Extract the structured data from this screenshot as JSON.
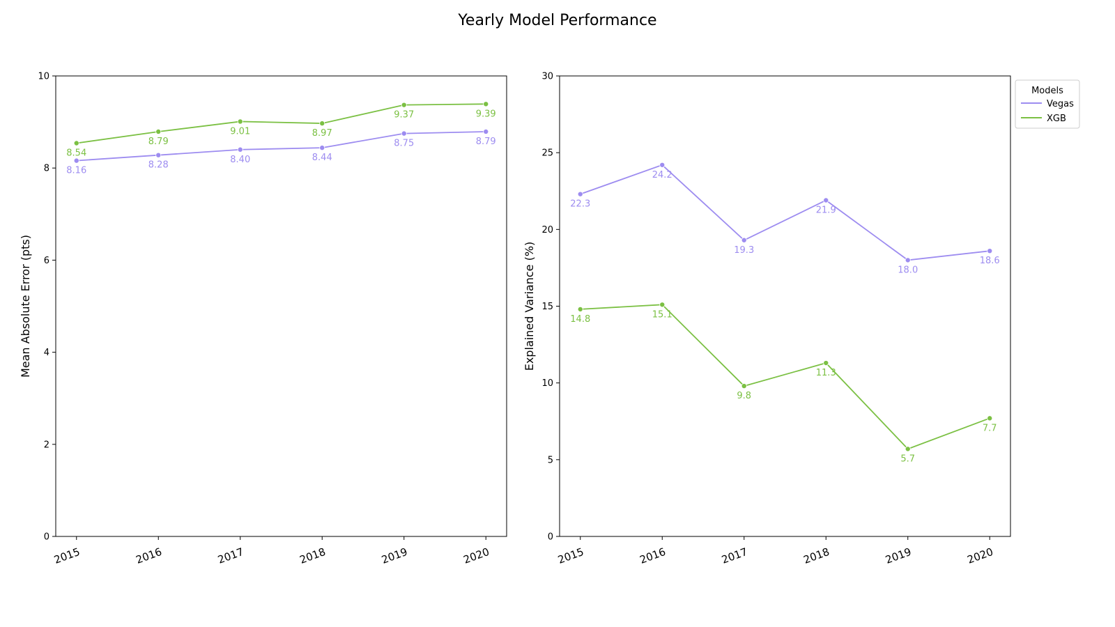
{
  "title": "Yearly Model Performance",
  "colors": {
    "Vegas": "#9d8cf0",
    "XGB": "#7bc043"
  },
  "legend": {
    "title": "Models",
    "placement": "outside-right-top",
    "entries": [
      "Vegas",
      "XGB"
    ]
  },
  "chart_data": [
    {
      "type": "line",
      "ylabel": "Mean Absolute Error (pts)",
      "xlabel": "",
      "x": [
        "2015",
        "2016",
        "2017",
        "2018",
        "2019",
        "2020"
      ],
      "ylim": [
        0,
        10
      ],
      "yticks": [
        0,
        2,
        4,
        6,
        8,
        10
      ],
      "grid": false,
      "series": [
        {
          "name": "Vegas",
          "values": [
            8.16,
            8.28,
            8.4,
            8.44,
            8.75,
            8.79
          ],
          "labels": [
            "8.16",
            "8.28",
            "8.40",
            "8.44",
            "8.75",
            "8.79"
          ]
        },
        {
          "name": "XGB",
          "values": [
            8.54,
            8.79,
            9.01,
            8.97,
            9.37,
            9.39
          ],
          "labels": [
            "8.54",
            "8.79",
            "9.01",
            "8.97",
            "9.37",
            "9.39"
          ]
        }
      ]
    },
    {
      "type": "line",
      "ylabel": "Explained Variance (%)",
      "xlabel": "",
      "x": [
        "2015",
        "2016",
        "2017",
        "2018",
        "2019",
        "2020"
      ],
      "ylim": [
        0,
        30
      ],
      "yticks": [
        0,
        5,
        10,
        15,
        20,
        25,
        30
      ],
      "grid": false,
      "series": [
        {
          "name": "Vegas",
          "values": [
            22.3,
            24.2,
            19.3,
            21.9,
            18.0,
            18.6
          ],
          "labels": [
            "22.3",
            "24.2",
            "19.3",
            "21.9",
            "18.0",
            "18.6"
          ]
        },
        {
          "name": "XGB",
          "values": [
            14.8,
            15.1,
            9.8,
            11.3,
            5.7,
            7.7
          ],
          "labels": [
            "14.8",
            "15.1",
            "9.8",
            "11.3",
            "5.7",
            "7.7"
          ]
        }
      ]
    }
  ]
}
